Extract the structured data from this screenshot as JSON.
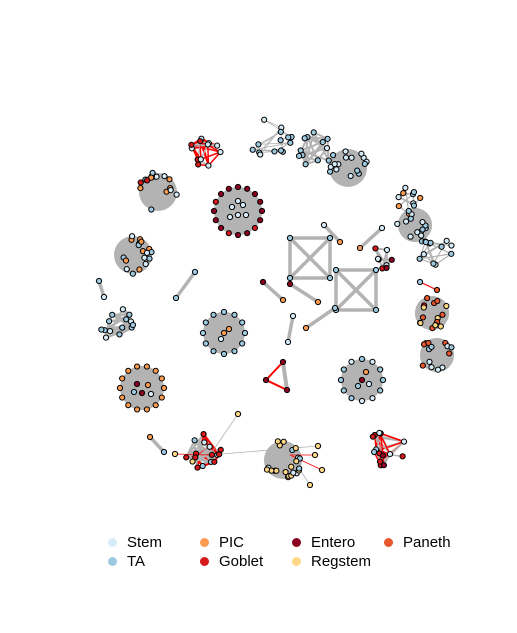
{
  "legend": {
    "items": [
      {
        "label": "Stem",
        "color": "#d6ecf8"
      },
      {
        "label": "TA",
        "color": "#9ecae1"
      },
      {
        "label": "PIC",
        "color": "#fd9b50"
      },
      {
        "label": "Goblet",
        "color": "#d7191c"
      },
      {
        "label": "Entero",
        "color": "#8b0020"
      },
      {
        "label": "Regstem",
        "color": "#fed785"
      },
      {
        "label": "Paneth",
        "color": "#e8572d"
      }
    ]
  },
  "colors": {
    "edge_gray": "#b3b3b3",
    "edge_red": "#ff0000",
    "node_stroke": "#000000",
    "cluster_fill": "#b3b3b3"
  }
}
